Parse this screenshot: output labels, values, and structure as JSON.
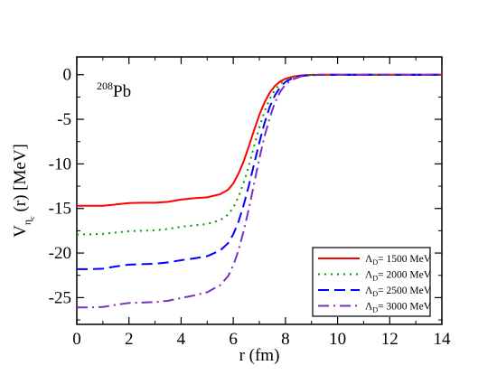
{
  "chart_data": {
    "type": "line",
    "annotation": {
      "sup": "208",
      "text": "Pb"
    },
    "xlabel": "r (fm)",
    "ylabel": {
      "main": "V",
      "sub": "η",
      "subsub": "c",
      "rest": " (r)  [MeV]"
    },
    "xlim": [
      0,
      14
    ],
    "ylim": [
      -28,
      2
    ],
    "xticks": [
      0,
      2,
      4,
      6,
      8,
      10,
      12,
      14
    ],
    "yticks": [
      0,
      -5,
      -10,
      -15,
      -20,
      -25
    ],
    "grid": false,
    "legend_position": "bottom-right",
    "series": [
      {
        "name": "Λ_D= 1500 MeV",
        "label": {
          "main": "Λ",
          "sub": "D",
          "rest": "= 1500 MeV"
        },
        "color": "#ff0000",
        "style": "solid",
        "x": [
          0,
          0.5,
          1,
          1.5,
          2,
          2.5,
          3,
          3.5,
          4,
          4.5,
          5,
          5.5,
          5.8,
          6,
          6.2,
          6.4,
          6.6,
          6.8,
          7,
          7.2,
          7.4,
          7.6,
          7.8,
          8,
          8.3,
          8.6,
          9,
          9.5,
          10,
          11,
          12,
          13,
          14
        ],
        "y": [
          -14.7,
          -14.7,
          -14.7,
          -14.55,
          -14.4,
          -14.35,
          -14.35,
          -14.25,
          -14.0,
          -13.85,
          -13.75,
          -13.4,
          -12.9,
          -12.2,
          -11.1,
          -9.7,
          -8.0,
          -6.2,
          -4.5,
          -3.1,
          -2.0,
          -1.25,
          -0.75,
          -0.45,
          -0.2,
          -0.08,
          -0.02,
          0,
          0,
          0,
          0,
          0,
          0
        ]
      },
      {
        "name": "Λ_D= 2000 MeV",
        "label": {
          "main": "Λ",
          "sub": "D",
          "rest": "= 2000 MeV"
        },
        "color": "#009900",
        "style": "dotted",
        "x": [
          0,
          0.5,
          1,
          1.5,
          2,
          2.5,
          3,
          3.5,
          4,
          4.5,
          5,
          5.5,
          5.8,
          6,
          6.2,
          6.4,
          6.6,
          6.8,
          7,
          7.2,
          7.4,
          7.6,
          7.8,
          8,
          8.3,
          8.6,
          9,
          9.5,
          10,
          11,
          12,
          13,
          14
        ],
        "y": [
          -17.9,
          -17.9,
          -17.85,
          -17.7,
          -17.55,
          -17.5,
          -17.45,
          -17.3,
          -17.05,
          -16.9,
          -16.75,
          -16.3,
          -15.7,
          -14.9,
          -13.7,
          -12.1,
          -10.2,
          -8.0,
          -5.9,
          -4.1,
          -2.7,
          -1.7,
          -1.0,
          -0.6,
          -0.25,
          -0.1,
          -0.03,
          0,
          0,
          0,
          0,
          0,
          0
        ]
      },
      {
        "name": "Λ_D= 2500 MeV",
        "label": {
          "main": "Λ",
          "sub": "D",
          "rest": "= 2500 MeV"
        },
        "color": "#0000ff",
        "style": "dashed",
        "x": [
          0,
          0.5,
          1,
          1.5,
          2,
          2.5,
          3,
          3.5,
          4,
          4.5,
          5,
          5.5,
          5.8,
          6,
          6.2,
          6.4,
          6.6,
          6.8,
          7,
          7.2,
          7.4,
          7.6,
          7.8,
          8,
          8.3,
          8.6,
          9,
          9.5,
          10,
          11,
          12,
          13,
          14
        ],
        "y": [
          -21.8,
          -21.8,
          -21.75,
          -21.5,
          -21.3,
          -21.25,
          -21.2,
          -21.05,
          -20.8,
          -20.6,
          -20.35,
          -19.7,
          -18.9,
          -17.9,
          -16.5,
          -14.6,
          -12.4,
          -10.0,
          -7.6,
          -5.4,
          -3.6,
          -2.3,
          -1.4,
          -0.8,
          -0.35,
          -0.13,
          -0.04,
          0,
          0,
          0,
          0,
          0,
          0
        ]
      },
      {
        "name": "Λ_D= 3000 MeV",
        "label": {
          "main": "Λ",
          "sub": "D",
          "rest": "= 3000 MeV"
        },
        "color": "#7b2fbe",
        "style": "dashdot",
        "x": [
          0,
          0.5,
          1,
          1.5,
          2,
          2.5,
          3,
          3.5,
          4,
          4.5,
          5,
          5.5,
          5.8,
          6,
          6.2,
          6.4,
          6.6,
          6.8,
          7,
          7.2,
          7.4,
          7.6,
          7.8,
          8,
          8.3,
          8.6,
          9,
          9.5,
          10,
          11,
          12,
          13,
          14
        ],
        "y": [
          -26.1,
          -26.1,
          -26.05,
          -25.8,
          -25.6,
          -25.55,
          -25.5,
          -25.35,
          -25.05,
          -24.75,
          -24.4,
          -23.6,
          -22.6,
          -21.4,
          -19.7,
          -17.5,
          -15.0,
          -12.2,
          -9.4,
          -6.9,
          -4.8,
          -3.1,
          -1.9,
          -1.1,
          -0.5,
          -0.18,
          -0.05,
          0,
          0,
          0,
          0,
          0,
          0
        ]
      }
    ]
  }
}
